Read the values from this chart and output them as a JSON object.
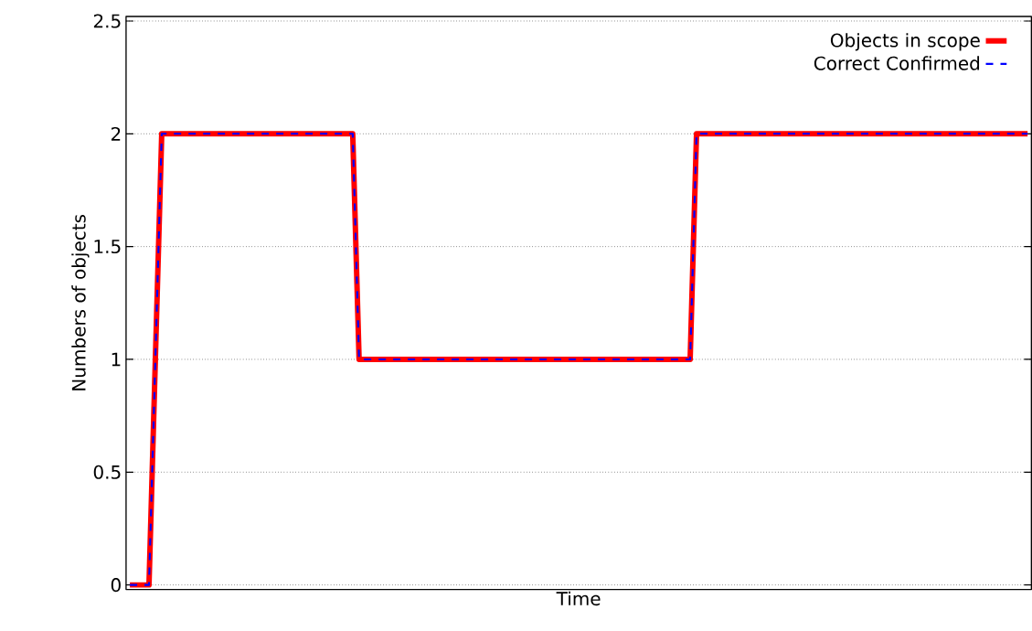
{
  "chart_data": {
    "type": "line",
    "xlabel": "Time",
    "ylabel": "Numbers of objects",
    "categories": [
      null,
      null,
      null,
      null,
      null,
      null,
      null,
      null,
      null,
      null,
      null,
      null,
      null,
      null,
      null,
      null,
      null,
      null,
      null,
      null,
      null,
      null,
      null,
      null,
      null,
      null,
      null,
      null,
      null,
      null,
      null,
      null,
      null,
      null,
      null,
      null,
      null,
      null,
      null,
      null,
      null,
      null,
      null,
      null,
      null,
      null,
      null,
      null,
      null,
      null,
      null,
      null,
      null,
      null,
      null,
      null,
      null,
      null,
      null,
      null,
      null,
      null,
      null,
      null,
      null,
      null,
      null,
      null,
      null,
      null,
      null,
      null,
      null,
      null,
      null,
      null,
      null,
      null,
      null,
      null,
      null,
      null,
      null,
      null,
      null,
      null,
      null,
      null,
      null,
      null,
      null,
      null,
      null,
      null,
      null,
      null,
      null,
      null,
      null,
      null,
      null,
      null,
      null,
      null,
      null,
      null,
      null,
      null,
      null,
      null,
      null,
      null,
      null,
      null,
      null,
      null,
      null,
      null,
      null,
      null,
      null,
      null,
      null,
      null,
      null,
      null,
      null,
      null,
      null,
      null,
      null,
      null,
      null,
      null,
      null,
      null,
      null,
      null,
      null,
      null,
      null,
      null
    ],
    "series": [
      {
        "name": "Objects in scope",
        "color": "#ff0000",
        "line_style": "solid",
        "values": [
          0,
          0,
          0,
          0,
          1,
          2,
          2,
          2,
          2,
          2,
          2,
          2,
          2,
          2,
          2,
          2,
          2,
          2,
          2,
          2,
          2,
          2,
          2,
          2,
          2,
          2,
          2,
          2,
          2,
          2,
          2,
          2,
          2,
          2,
          2,
          2,
          1,
          1,
          1,
          1,
          1,
          1,
          1,
          1,
          1,
          1,
          1,
          1,
          1,
          1,
          1,
          1,
          1,
          1,
          1,
          1,
          1,
          1,
          1,
          1,
          1,
          1,
          1,
          1,
          1,
          1,
          1,
          1,
          1,
          1,
          1,
          1,
          1,
          1,
          1,
          1,
          1,
          1,
          1,
          1,
          1,
          1,
          1,
          1,
          1,
          1,
          1,
          1,
          1,
          2,
          2,
          2,
          2,
          2,
          2,
          2,
          2,
          2,
          2,
          2,
          2,
          2,
          2,
          2,
          2,
          2,
          2,
          2,
          2,
          2,
          2,
          2,
          2,
          2,
          2,
          2,
          2,
          2,
          2,
          2,
          2,
          2,
          2,
          2,
          2,
          2,
          2,
          2,
          2,
          2,
          2,
          2,
          2,
          2,
          2,
          2,
          2,
          2,
          2,
          2,
          2,
          2
        ]
      },
      {
        "name": "Correct Confirmed",
        "color": "#0000ff",
        "line_style": "dashed",
        "values": [
          0,
          0,
          0,
          0,
          1,
          2,
          2,
          2,
          2,
          2,
          2,
          2,
          2,
          2,
          2,
          2,
          2,
          2,
          2,
          2,
          2,
          2,
          2,
          2,
          2,
          2,
          2,
          2,
          2,
          2,
          2,
          2,
          2,
          2,
          2,
          2,
          1,
          1,
          1,
          1,
          1,
          1,
          1,
          1,
          1,
          1,
          1,
          1,
          1,
          1,
          1,
          1,
          1,
          1,
          1,
          1,
          1,
          1,
          1,
          1,
          1,
          1,
          1,
          1,
          1,
          1,
          1,
          1,
          1,
          1,
          1,
          1,
          1,
          1,
          1,
          1,
          1,
          1,
          1,
          1,
          1,
          1,
          1,
          1,
          1,
          1,
          1,
          1,
          1,
          2,
          2,
          2,
          2,
          2,
          2,
          2,
          2,
          2,
          2,
          2,
          2,
          2,
          2,
          2,
          2,
          2,
          2,
          2,
          2,
          2,
          2,
          2,
          2,
          2,
          2,
          2,
          2,
          2,
          2,
          2,
          2,
          2,
          2,
          2,
          2,
          2,
          2,
          2,
          2,
          2,
          2,
          2,
          2,
          2,
          2,
          2,
          2,
          2,
          2,
          2,
          2,
          2
        ]
      }
    ],
    "ylim": [
      0,
      2.5
    ],
    "yticks": [
      0,
      0.5,
      1,
      1.5,
      2,
      2.5
    ],
    "grid": "y",
    "legend": "top right"
  }
}
